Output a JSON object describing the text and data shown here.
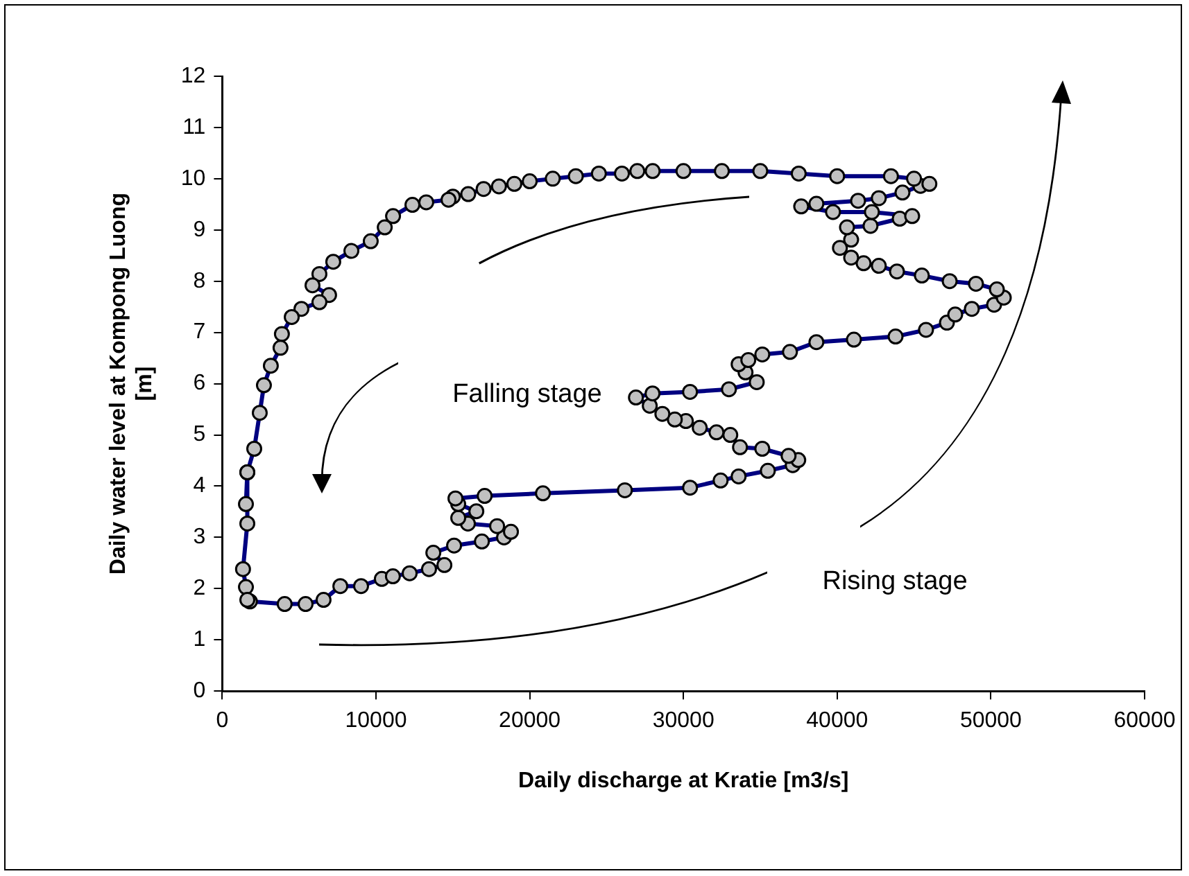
{
  "chart_data": {
    "type": "line",
    "xlabel": "Daily discharge at Kratie [m3/s]",
    "ylabel": "Daily water level at Kompong Luong [m]",
    "xlim": [
      0,
      60000
    ],
    "xticks": [
      0,
      10000,
      20000,
      30000,
      40000,
      50000,
      60000
    ],
    "ylim": [
      0,
      12
    ],
    "yticks": [
      0,
      1,
      2,
      3,
      4,
      5,
      6,
      7,
      8,
      9,
      10,
      11,
      12
    ],
    "grid": false,
    "legend": false,
    "marker": "circle",
    "line_style": "solid",
    "annotations": [
      "Falling stage",
      "Rising stage"
    ],
    "series": [
      {
        "color": "#000080",
        "x": [
          1800,
          4060,
          5420,
          6590,
          7680,
          9030,
          10380,
          11100,
          12190,
          13450,
          14450,
          13730,
          15080,
          16890,
          18330,
          18780,
          17880,
          15980,
          15350,
          16530,
          15350,
          15170,
          17070,
          20860,
          26190,
          30430,
          32420,
          33590,
          35490,
          37110,
          37470,
          36840,
          35130,
          33680,
          33050,
          32150,
          31060,
          30160,
          29440,
          28630,
          27810,
          26910,
          27990,
          30430,
          32960,
          34770,
          34040,
          33590,
          34220,
          35130,
          36930,
          38650,
          41090,
          43800,
          45780,
          47140,
          47680,
          48760,
          50210,
          50840,
          50390,
          49030,
          47320,
          45510,
          43890,
          42710,
          41720,
          40910,
          40180,
          40910,
          40640,
          42170,
          44070,
          44880,
          42260,
          39730,
          37660,
          38650,
          41360,
          42710,
          44250,
          45420,
          46000,
          45000,
          43500,
          40000,
          37500,
          35000,
          32500,
          30000,
          28000,
          27000,
          26000,
          24500,
          23000,
          21500,
          20000,
          19000,
          18000,
          17000,
          16000,
          15000,
          14720,
          13270,
          12370,
          11110,
          10570,
          9660,
          8400,
          7220,
          6320,
          5870,
          6950,
          6320,
          5150,
          4520,
          3880,
          3790,
          3160,
          2710,
          2440,
          2080,
          1630,
          1540,
          1630,
          1630,
          1350,
          1540,
          1630
        ],
        "values": [
          1.75,
          1.7,
          1.7,
          1.78,
          2.05,
          2.05,
          2.19,
          2.24,
          2.3,
          2.38,
          2.46,
          2.7,
          2.84,
          2.92,
          3.0,
          3.11,
          3.22,
          3.27,
          3.38,
          3.51,
          3.65,
          3.76,
          3.81,
          3.86,
          3.92,
          3.97,
          4.11,
          4.19,
          4.3,
          4.41,
          4.51,
          4.59,
          4.73,
          4.76,
          5.0,
          5.05,
          5.14,
          5.27,
          5.3,
          5.41,
          5.57,
          5.73,
          5.81,
          5.84,
          5.89,
          6.03,
          6.22,
          6.38,
          6.46,
          6.57,
          6.62,
          6.81,
          6.86,
          6.92,
          7.05,
          7.19,
          7.35,
          7.46,
          7.54,
          7.68,
          7.84,
          7.95,
          8.0,
          8.11,
          8.19,
          8.3,
          8.35,
          8.46,
          8.65,
          8.81,
          9.05,
          9.08,
          9.22,
          9.27,
          9.35,
          9.35,
          9.46,
          9.51,
          9.57,
          9.62,
          9.73,
          9.86,
          9.9,
          10.0,
          10.05,
          10.05,
          10.1,
          10.15,
          10.15,
          10.15,
          10.15,
          10.15,
          10.1,
          10.1,
          10.05,
          10.0,
          9.95,
          9.9,
          9.85,
          9.8,
          9.7,
          9.65,
          9.59,
          9.54,
          9.49,
          9.27,
          9.05,
          8.78,
          8.59,
          8.38,
          8.14,
          7.92,
          7.73,
          7.59,
          7.46,
          7.3,
          6.97,
          6.7,
          6.35,
          5.97,
          5.43,
          4.73,
          4.27,
          3.65,
          4.27,
          3.27,
          2.38,
          2.03,
          1.78
        ]
      }
    ]
  }
}
